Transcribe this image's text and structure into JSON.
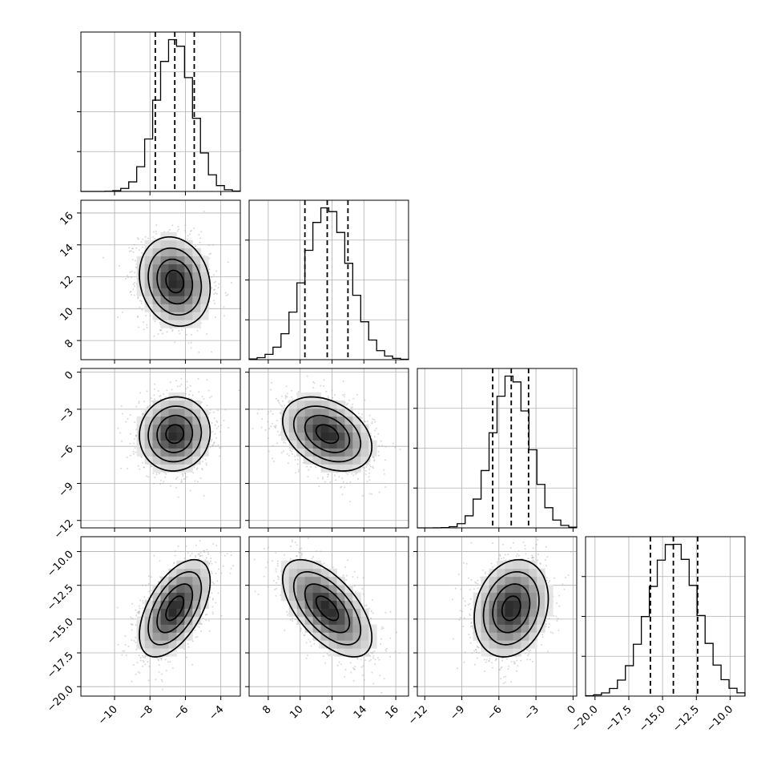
{
  "chart_data": {
    "type": "corner",
    "parameters": [
      {
        "mean": -6.6,
        "sd": 1.0,
        "range": [
          -11.9,
          -2.9
        ],
        "ticks": [
          -10,
          -8,
          -6,
          -4
        ],
        "tick_labels": [
          "−10",
          "−8",
          "−6",
          "−4"
        ],
        "quantiles": [
          -7.7,
          -6.6,
          -5.5
        ]
      },
      {
        "mean": 11.7,
        "sd": 1.4,
        "range": [
          6.8,
          16.8
        ],
        "ticks": [
          8,
          10,
          12,
          14,
          16
        ],
        "tick_labels": [
          "8",
          "10",
          "12",
          "14",
          "16"
        ],
        "quantiles": [
          10.3,
          11.7,
          13.0
        ]
      },
      {
        "mean": -5.0,
        "sd": 1.5,
        "range": [
          -12.6,
          0.3
        ],
        "ticks": [
          -12,
          -9,
          -6,
          -3,
          0
        ],
        "tick_labels": [
          "−12",
          "−9",
          "−6",
          "−3",
          "0"
        ],
        "quantiles": [
          -6.5,
          -5.0,
          -3.6
        ]
      },
      {
        "mean": -14.2,
        "sd": 1.8,
        "range": [
          -20.7,
          -8.9
        ],
        "ticks": [
          -20.0,
          -17.5,
          -15.0,
          -12.5,
          -10.0
        ],
        "tick_labels": [
          "−20.0",
          "−17.5",
          "−15.0",
          "−12.5",
          "−10.0"
        ],
        "quantiles": [
          -15.9,
          -14.2,
          -12.4
        ]
      }
    ],
    "correlations": [
      [
        1.0,
        -0.15,
        0.05,
        0.55
      ],
      [
        -0.15,
        1.0,
        -0.35,
        -0.6
      ],
      [
        0.05,
        -0.35,
        1.0,
        0.2
      ],
      [
        0.55,
        -0.6,
        0.2,
        1.0
      ]
    ],
    "contour_levels_sigma": [
      0.5,
      1.0,
      1.5,
      2.0
    ],
    "histogram_bins": 20,
    "grid": true
  }
}
